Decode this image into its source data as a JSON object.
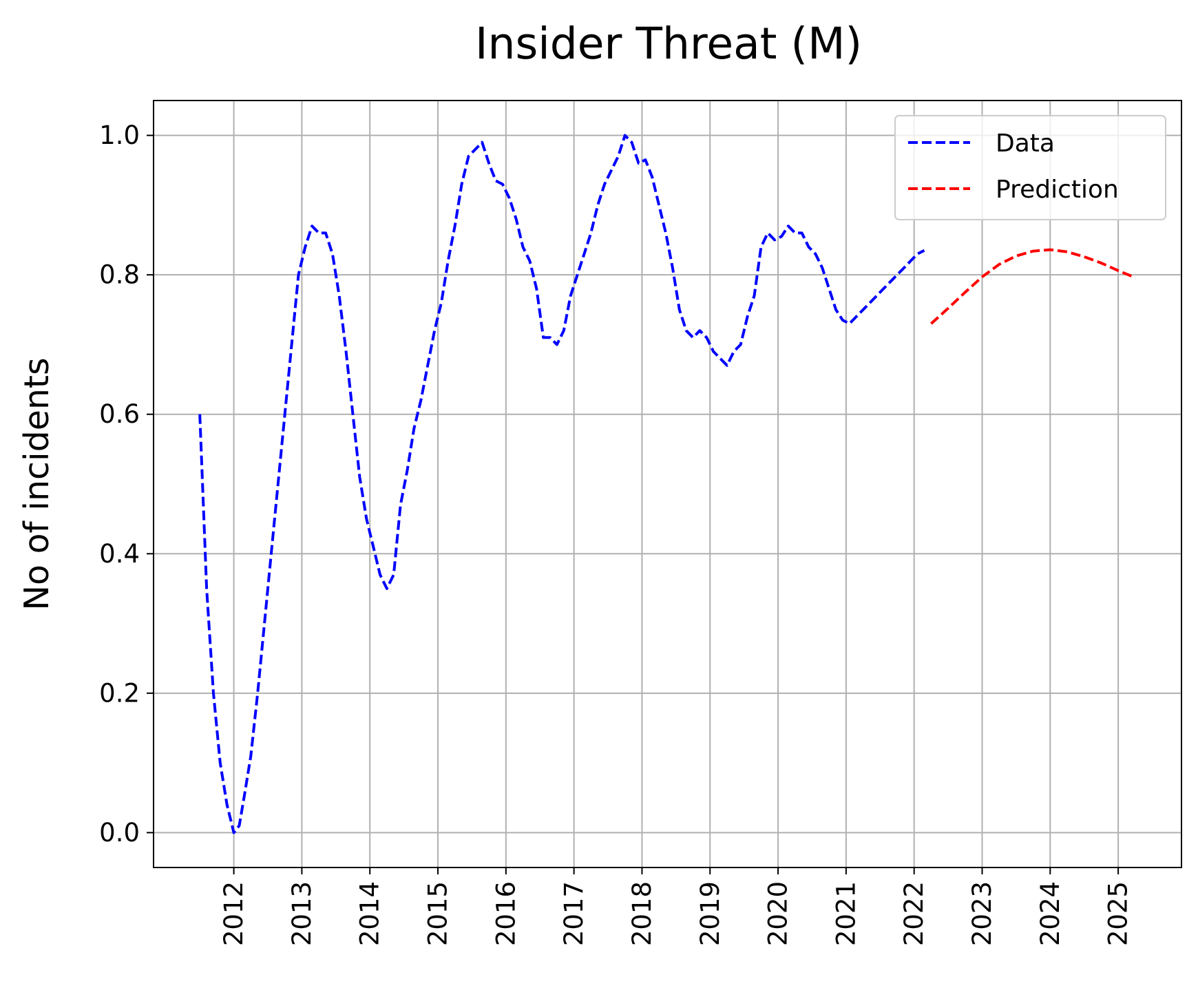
{
  "chart_data": {
    "type": "line",
    "title": "Insider Threat (M)",
    "xlabel": "",
    "ylabel": "No of incidents",
    "x_ticks": [
      2012,
      2013,
      2014,
      2015,
      2016,
      2017,
      2018,
      2019,
      2020,
      2021,
      2022,
      2023,
      2024,
      2025
    ],
    "y_ticks": [
      "0.0",
      "0.2",
      "0.4",
      "0.6",
      "0.8",
      "1.0"
    ],
    "xlim": [
      2010.82,
      2025.93
    ],
    "ylim": [
      -0.05,
      1.05
    ],
    "grid": true,
    "legend_position": "top-right",
    "series": [
      {
        "name": "Data",
        "color": "#0000ff",
        "style": "dashed",
        "x": [
          2011.5,
          2011.6,
          2011.7,
          2011.8,
          2011.9,
          2012.0,
          2012.08,
          2012.15,
          2012.25,
          2012.35,
          2012.45,
          2012.55,
          2012.65,
          2012.75,
          2012.85,
          2012.95,
          2013.05,
          2013.15,
          2013.25,
          2013.35,
          2013.45,
          2013.55,
          2013.65,
          2013.75,
          2013.85,
          2013.95,
          2014.05,
          2014.15,
          2014.25,
          2014.35,
          2014.45,
          2014.55,
          2014.65,
          2014.75,
          2014.85,
          2014.95,
          2015.05,
          2015.15,
          2015.25,
          2015.35,
          2015.45,
          2015.55,
          2015.65,
          2015.75,
          2015.85,
          2015.95,
          2016.05,
          2016.15,
          2016.25,
          2016.35,
          2016.45,
          2016.55,
          2016.65,
          2016.75,
          2016.85,
          2016.95,
          2017.05,
          2017.15,
          2017.25,
          2017.35,
          2017.45,
          2017.55,
          2017.65,
          2017.75,
          2017.85,
          2017.95,
          2018.05,
          2018.15,
          2018.25,
          2018.35,
          2018.45,
          2018.55,
          2018.65,
          2018.75,
          2018.85,
          2018.95,
          2019.05,
          2019.15,
          2019.25,
          2019.35,
          2019.45,
          2019.55,
          2019.65,
          2019.75,
          2019.85,
          2019.95,
          2020.05,
          2020.15,
          2020.25,
          2020.35,
          2020.45,
          2020.55,
          2020.65,
          2020.75,
          2020.85,
          2020.95,
          2021.05,
          2021.15,
          2021.25,
          2021.35,
          2021.45,
          2021.55,
          2021.65,
          2021.75,
          2021.85,
          2021.95,
          2022.05,
          2022.15
        ],
        "y": [
          0.6,
          0.35,
          0.2,
          0.1,
          0.04,
          0.0,
          0.01,
          0.05,
          0.11,
          0.2,
          0.3,
          0.4,
          0.5,
          0.6,
          0.7,
          0.8,
          0.84,
          0.87,
          0.86,
          0.86,
          0.83,
          0.77,
          0.69,
          0.6,
          0.51,
          0.45,
          0.41,
          0.37,
          0.35,
          0.37,
          0.47,
          0.52,
          0.58,
          0.62,
          0.67,
          0.72,
          0.76,
          0.82,
          0.87,
          0.93,
          0.97,
          0.98,
          0.99,
          0.96,
          0.935,
          0.93,
          0.91,
          0.88,
          0.84,
          0.82,
          0.78,
          0.71,
          0.71,
          0.7,
          0.72,
          0.77,
          0.8,
          0.83,
          0.86,
          0.9,
          0.93,
          0.95,
          0.97,
          1.0,
          0.99,
          0.96,
          0.965,
          0.94,
          0.9,
          0.86,
          0.81,
          0.75,
          0.72,
          0.71,
          0.72,
          0.71,
          0.69,
          0.68,
          0.67,
          0.69,
          0.7,
          0.74,
          0.77,
          0.84,
          0.86,
          0.85,
          0.855,
          0.87,
          0.86,
          0.86,
          0.84,
          0.83,
          0.81,
          0.78,
          0.75,
          0.735,
          0.73,
          0.74,
          0.75,
          0.76,
          0.77,
          0.78,
          0.79,
          0.8,
          0.81,
          0.82,
          0.83,
          0.835
        ]
      },
      {
        "name": "Prediction",
        "color": "#ff0000",
        "style": "dashed",
        "x": [
          2022.25,
          2022.5,
          2022.75,
          2023.0,
          2023.25,
          2023.5,
          2023.75,
          2024.0,
          2024.25,
          2024.5,
          2024.75,
          2025.0,
          2025.2
        ],
        "y": [
          0.73,
          0.752,
          0.775,
          0.797,
          0.815,
          0.827,
          0.834,
          0.836,
          0.833,
          0.826,
          0.817,
          0.806,
          0.798
        ]
      }
    ]
  }
}
